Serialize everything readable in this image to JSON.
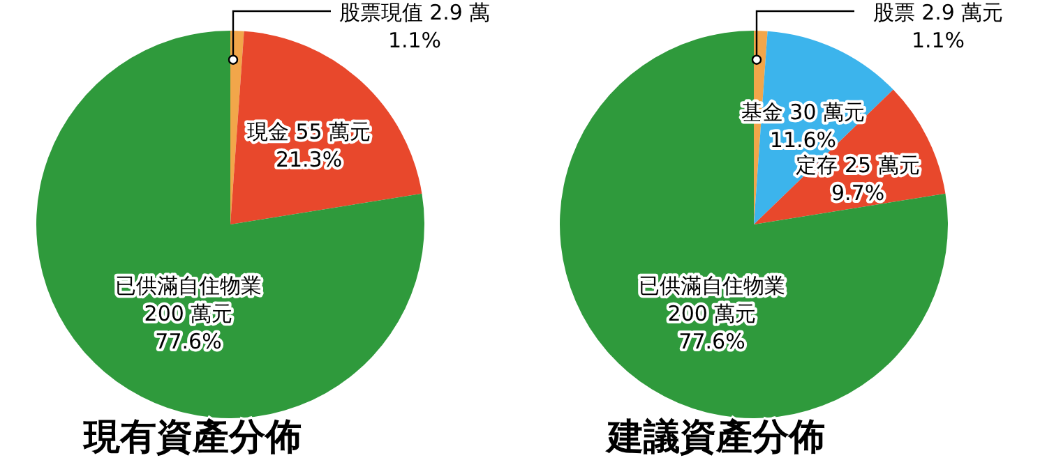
{
  "chart_data": [
    {
      "type": "pie",
      "title": "現有資產分佈",
      "categories": [
        "股票現值",
        "現金",
        "已供滿自住物業"
      ],
      "values": [
        2.9,
        55,
        200
      ],
      "colors": [
        "#f2a64a",
        "#e8482c",
        "#2f9a3c"
      ],
      "value_labels": [
        "2.9 萬\n1.1%",
        "55 萬元\n21.3%",
        "200 萬元\n77.6%"
      ],
      "legend": false
    },
    {
      "type": "pie",
      "title": "建議資產分佈",
      "categories": [
        "股票",
        "基金",
        "定存",
        "已供滿自住物業"
      ],
      "values": [
        2.9,
        30,
        25,
        200
      ],
      "colors": [
        "#f2a64a",
        "#3cb4ec",
        "#e8482c",
        "#2f9a3c"
      ],
      "value_labels": [
        "2.9 萬元\n1.1%",
        "30 萬元\n11.6%",
        "25 萬元\n9.7%",
        "200 萬元\n77.6%"
      ],
      "legend": false
    }
  ]
}
